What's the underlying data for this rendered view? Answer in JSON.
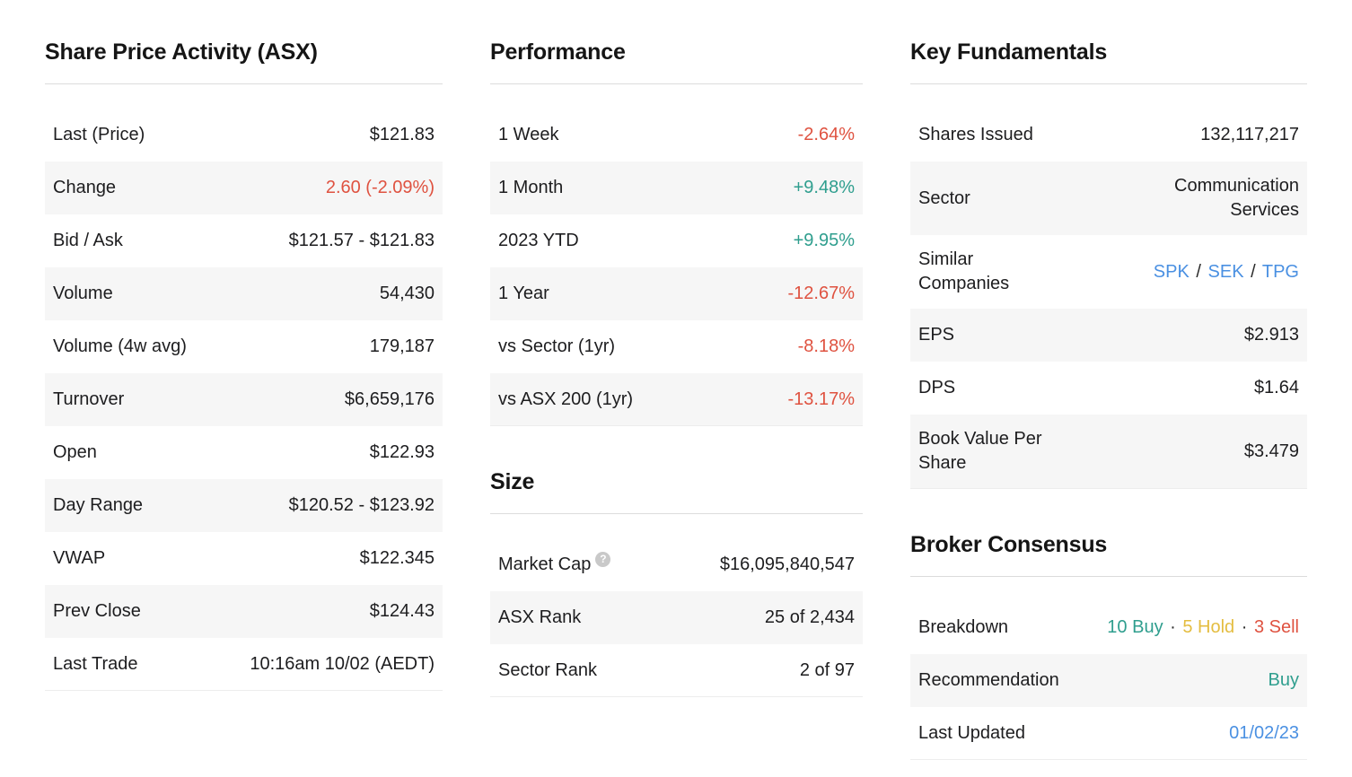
{
  "colors": {
    "negative_red": "#df5240",
    "positive_teal": "#2f9e8e",
    "hold_yellow": "#e4bd40",
    "link_blue": "#4a90e2",
    "text_dark": "#1d1d1f",
    "row_stripe": "#f6f6f6",
    "help_icon_bg": "#c9c9c9"
  },
  "sections": {
    "share_price": {
      "title": "Share Price Activity (ASX)",
      "rows": [
        {
          "label": "Last (Price)",
          "value": "$121.83"
        },
        {
          "label": "Change",
          "value": "2.60 (-2.09%)",
          "color": "#df5240"
        },
        {
          "label": "Bid / Ask",
          "value": "$121.57 - $121.83"
        },
        {
          "label": "Volume",
          "value": "54,430"
        },
        {
          "label": "Volume (4w avg)",
          "value": "179,187"
        },
        {
          "label": "Turnover",
          "value": "$6,659,176"
        },
        {
          "label": "Open",
          "value": "$122.93"
        },
        {
          "label": "Day Range",
          "value": "$120.52 - $123.92"
        },
        {
          "label": "VWAP",
          "value": "$122.345"
        },
        {
          "label": "Prev Close",
          "value": "$124.43"
        },
        {
          "label": "Last Trade",
          "value": "10:16am 10/02 (AEDT)"
        }
      ]
    },
    "performance": {
      "title": "Performance",
      "rows": [
        {
          "label": "1 Week",
          "value": "-2.64%",
          "direction": "down"
        },
        {
          "label": "1 Month",
          "value": "+9.48%",
          "direction": "up"
        },
        {
          "label": "2023 YTD",
          "value": "+9.95%",
          "direction": "up"
        },
        {
          "label": "1 Year",
          "value": "-12.67%",
          "direction": "down"
        },
        {
          "label": "vs Sector (1yr)",
          "value": "-8.18%",
          "direction": "down"
        },
        {
          "label": "vs ASX 200 (1yr)",
          "value": "-13.17%",
          "direction": "down"
        }
      ]
    },
    "size": {
      "title": "Size",
      "rows": [
        {
          "label": "Market Cap",
          "help_icon": "?",
          "value": "$16,095,840,547"
        },
        {
          "label": "ASX Rank",
          "value": "25 of 2,434"
        },
        {
          "label": "Sector Rank",
          "value": "2 of 97"
        }
      ]
    },
    "fundamentals": {
      "title": "Key Fundamentals",
      "rows": [
        {
          "label": "Shares Issued",
          "value": "132,117,217"
        },
        {
          "label": "Sector",
          "value": "Communication Services"
        },
        {
          "label": "Similar Companies",
          "links": [
            "SPK",
            "SEK",
            "TPG"
          ],
          "separator": "/"
        },
        {
          "label": "EPS",
          "value": "$2.913"
        },
        {
          "label": "DPS",
          "value": "$1.64"
        },
        {
          "label": "Book Value Per Share",
          "value": "$3.479"
        }
      ]
    },
    "broker": {
      "title": "Broker Consensus",
      "rows": [
        {
          "label": "Breakdown",
          "buy": "10 Buy",
          "hold": "5 Hold",
          "sell": "3 Sell",
          "separator": "·"
        },
        {
          "label": "Recommendation",
          "value": "Buy",
          "color": "#2f9e8e"
        },
        {
          "label": "Last Updated",
          "value": "01/02/23",
          "color": "#4a90e2"
        }
      ]
    }
  }
}
